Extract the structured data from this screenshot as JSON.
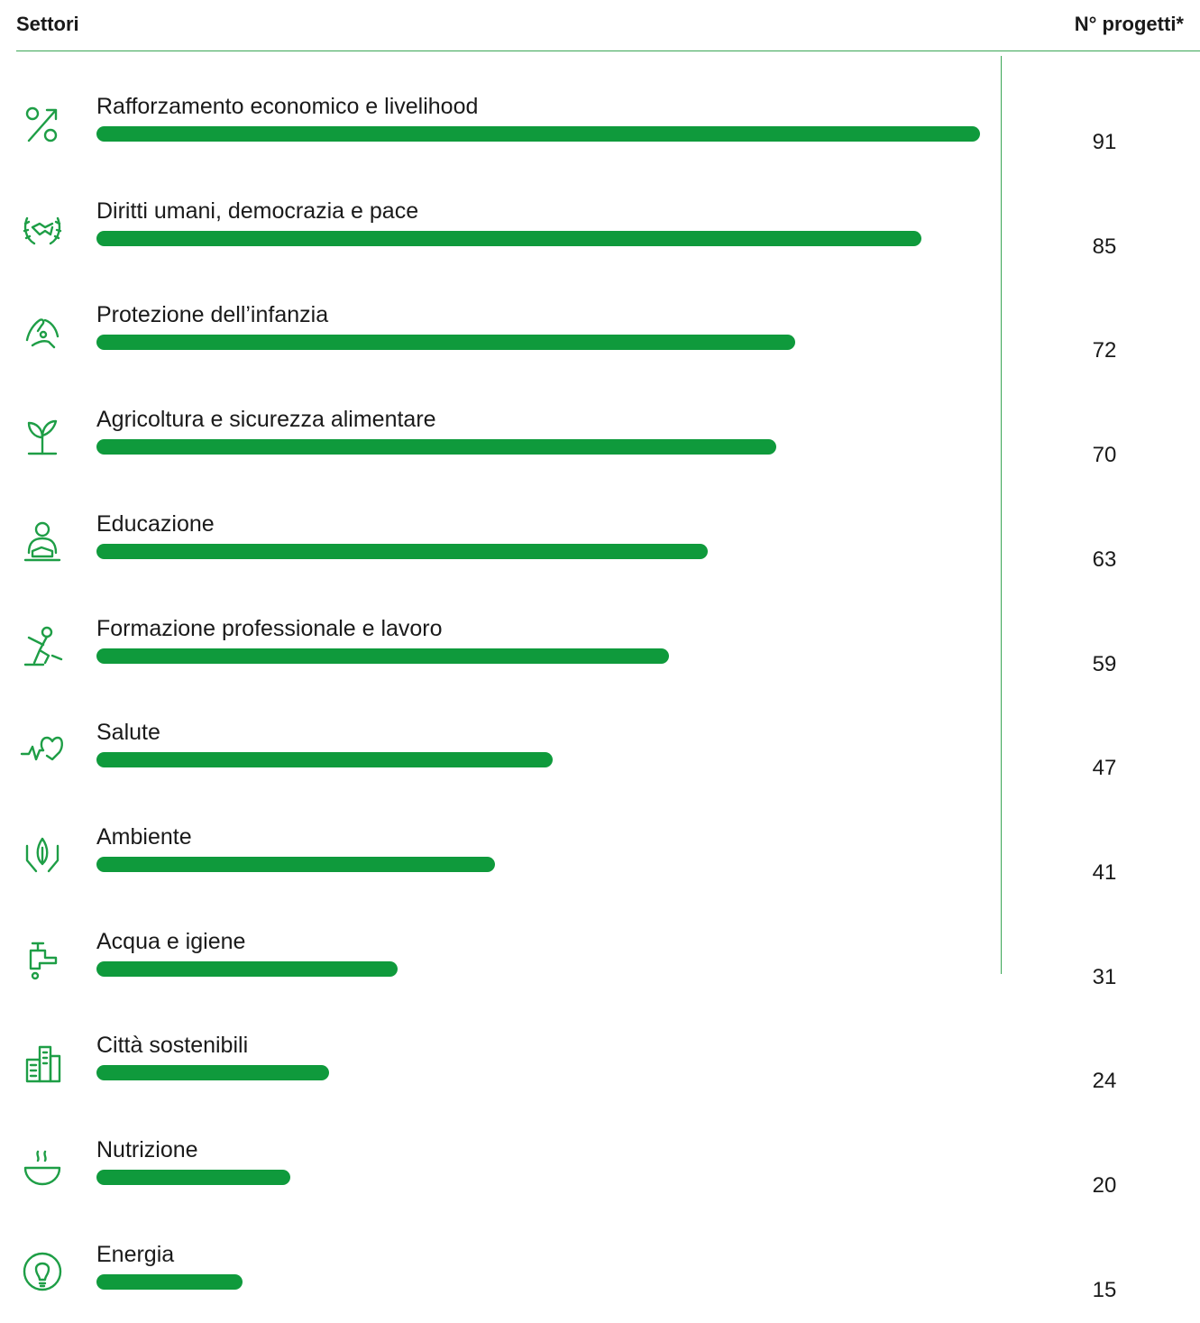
{
  "header": {
    "left": "Settori",
    "right": "N° progetti*"
  },
  "colors": {
    "bar": "#0f9a3c",
    "rule": "#3aa655",
    "icon": "#1e9e46"
  },
  "chart_data": {
    "type": "bar",
    "orientation": "horizontal",
    "categories": [
      "Rafforzamento economico e livelihood",
      "Diritti umani, democrazia e pace",
      "Protezione dell’infanzia",
      "Agricoltura e sicurezza alimentare",
      "Educazione",
      "Formazione professionale e lavoro",
      "Salute",
      "Ambiente",
      "Acqua e igiene",
      "Città sostenibili",
      "Nutrizione",
      "Energia"
    ],
    "values": [
      91,
      85,
      72,
      70,
      63,
      59,
      47,
      41,
      31,
      24,
      20,
      15
    ],
    "icons": [
      "percent-growth-icon",
      "handshake-laurel-icon",
      "child-protection-hands-icon",
      "sprout-icon",
      "student-reading-icon",
      "worker-tool-icon",
      "heartbeat-icon",
      "leaf-in-hands-icon",
      "water-tap-icon",
      "city-buildings-icon",
      "bowl-icon",
      "lightbulb-icon"
    ],
    "xlim": [
      0,
      91
    ],
    "grid": false,
    "legend": "none"
  }
}
